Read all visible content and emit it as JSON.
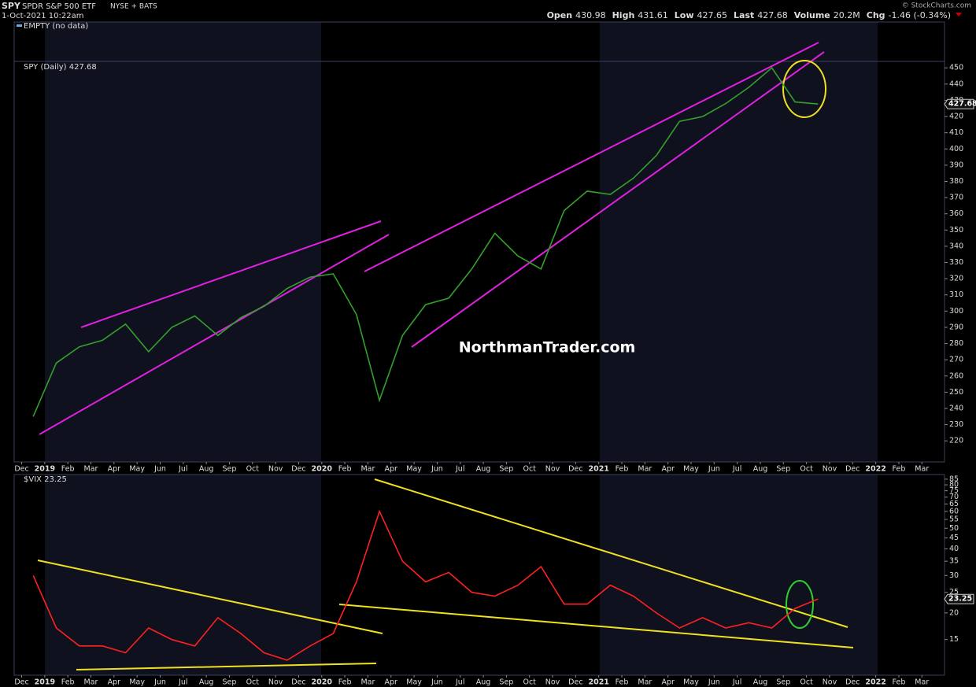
{
  "header": {
    "symbol": "SPY",
    "name": "SPDR S&P 500 ETF",
    "exchange": "NYSE + BATS",
    "datetime": "1-Oct-2021 10:22am",
    "quote": [
      {
        "label": "Open",
        "value": "430.98"
      },
      {
        "label": "High",
        "value": "431.61"
      },
      {
        "label": "Low",
        "value": "427.65"
      },
      {
        "label": "Last",
        "value": "427.68"
      },
      {
        "label": "Volume",
        "value": "20.2M"
      },
      {
        "label": "Chg",
        "value": "-1.46 (-0.34%)"
      }
    ],
    "credit": "© StockCharts.com"
  },
  "chart_data": [
    {
      "type": "empty",
      "title": "EMPTY (no data)"
    },
    {
      "type": "line",
      "title": "SPY (Daily) 427.68",
      "annotation": "NorthmanTrader.com",
      "color": "#33a02c",
      "last_value": 427.68,
      "x": [
        "2018-12",
        "2019-01",
        "2019-02",
        "2019-03",
        "2019-04",
        "2019-05",
        "2019-06",
        "2019-07",
        "2019-08",
        "2019-09",
        "2019-10",
        "2019-11",
        "2019-12",
        "2020-01",
        "2020-02",
        "2020-03",
        "2020-04",
        "2020-05",
        "2020-06",
        "2020-07",
        "2020-08",
        "2020-09",
        "2020-10",
        "2020-11",
        "2020-12",
        "2021-01",
        "2021-02",
        "2021-03",
        "2021-04",
        "2021-05",
        "2021-06",
        "2021-07",
        "2021-08",
        "2021-09",
        "2021-10"
      ],
      "values": [
        235,
        268,
        278,
        282,
        292,
        275,
        290,
        297,
        285,
        296,
        303,
        314,
        321,
        323,
        298,
        245,
        285,
        304,
        308,
        326,
        348,
        334,
        326,
        362,
        374,
        372,
        382,
        396,
        417,
        420,
        428,
        438,
        450,
        429,
        427.68
      ],
      "xlim": [
        "2018-11",
        "2022-04"
      ],
      "xticks": [
        {
          "value": "2018-12",
          "label": "Dec"
        },
        {
          "value": "2019-01",
          "label": "2019"
        },
        {
          "value": "2019-02",
          "label": "Feb"
        },
        {
          "value": "2019-03",
          "label": "Mar"
        },
        {
          "value": "2019-04",
          "label": "Apr"
        },
        {
          "value": "2019-05",
          "label": "May"
        },
        {
          "value": "2019-06",
          "label": "Jun"
        },
        {
          "value": "2019-07",
          "label": "Jul"
        },
        {
          "value": "2019-08",
          "label": "Aug"
        },
        {
          "value": "2019-09",
          "label": "Sep"
        },
        {
          "value": "2019-10",
          "label": "Oct"
        },
        {
          "value": "2019-11",
          "label": "Nov"
        },
        {
          "value": "2019-12",
          "label": "Dec"
        },
        {
          "value": "2020-01",
          "label": "2020"
        },
        {
          "value": "2020-02",
          "label": "Feb"
        },
        {
          "value": "2020-03",
          "label": "Mar"
        },
        {
          "value": "2020-04",
          "label": "Apr"
        },
        {
          "value": "2020-05",
          "label": "May"
        },
        {
          "value": "2020-06",
          "label": "Jun"
        },
        {
          "value": "2020-07",
          "label": "Jul"
        },
        {
          "value": "2020-08",
          "label": "Aug"
        },
        {
          "value": "2020-09",
          "label": "Sep"
        },
        {
          "value": "2020-10",
          "label": "Oct"
        },
        {
          "value": "2020-11",
          "label": "Nov"
        },
        {
          "value": "2020-12",
          "label": "Dec"
        },
        {
          "value": "2021-01",
          "label": "2021"
        },
        {
          "value": "2021-02",
          "label": "Feb"
        },
        {
          "value": "2021-03",
          "label": "Mar"
        },
        {
          "value": "2021-04",
          "label": "Apr"
        },
        {
          "value": "2021-05",
          "label": "May"
        },
        {
          "value": "2021-06",
          "label": "Jun"
        },
        {
          "value": "2021-07",
          "label": "Jul"
        },
        {
          "value": "2021-08",
          "label": "Aug"
        },
        {
          "value": "2021-09",
          "label": "Sep"
        },
        {
          "value": "2021-10",
          "label": "Oct"
        },
        {
          "value": "2021-11",
          "label": "Nov"
        },
        {
          "value": "2021-12",
          "label": "Dec"
        },
        {
          "value": "2022-01",
          "label": "2022"
        },
        {
          "value": "2022-02",
          "label": "Feb"
        },
        {
          "value": "2022-03",
          "label": "Mar"
        }
      ],
      "ylim": [
        207,
        454
      ],
      "log_scale": false,
      "yticks": [
        220,
        230,
        240,
        250,
        260,
        270,
        280,
        290,
        300,
        310,
        320,
        330,
        340,
        350,
        360,
        370,
        380,
        390,
        400,
        410,
        420,
        430,
        440,
        450
      ]
    },
    {
      "type": "line",
      "title": "$VIX 23.25",
      "color": "#ff2020",
      "last_value": 23.25,
      "x": [
        "2018-12",
        "2019-01",
        "2019-02",
        "2019-03",
        "2019-04",
        "2019-05",
        "2019-06",
        "2019-07",
        "2019-08",
        "2019-09",
        "2019-10",
        "2019-11",
        "2019-12",
        "2020-01",
        "2020-02",
        "2020-03",
        "2020-04",
        "2020-05",
        "2020-06",
        "2020-07",
        "2020-08",
        "2020-09",
        "2020-10",
        "2020-11",
        "2020-12",
        "2021-01",
        "2021-02",
        "2021-03",
        "2021-04",
        "2021-05",
        "2021-06",
        "2021-07",
        "2021-08",
        "2021-09",
        "2021-10"
      ],
      "values": [
        30,
        17,
        14,
        14,
        13,
        17,
        15,
        14,
        19,
        16,
        13,
        12,
        14,
        16,
        28,
        60,
        35,
        28,
        31,
        25,
        24,
        27,
        33,
        22,
        22,
        27,
        24,
        20,
        17,
        19,
        17,
        18,
        17,
        21,
        23.25
      ],
      "xlim": [
        "2018-11",
        "2022-04"
      ],
      "xticks": [
        {
          "value": "2018-12",
          "label": "Dec"
        },
        {
          "value": "2019-01",
          "label": "2019"
        },
        {
          "value": "2019-02",
          "label": "Feb"
        },
        {
          "value": "2019-03",
          "label": "Mar"
        },
        {
          "value": "2019-04",
          "label": "Apr"
        },
        {
          "value": "2019-05",
          "label": "May"
        },
        {
          "value": "2019-06",
          "label": "Jun"
        },
        {
          "value": "2019-07",
          "label": "Jul"
        },
        {
          "value": "2019-08",
          "label": "Aug"
        },
        {
          "value": "2019-09",
          "label": "Sep"
        },
        {
          "value": "2019-10",
          "label": "Oct"
        },
        {
          "value": "2019-11",
          "label": "Nov"
        },
        {
          "value": "2019-12",
          "label": "Dec"
        },
        {
          "value": "2020-01",
          "label": "2020"
        },
        {
          "value": "2020-02",
          "label": "Feb"
        },
        {
          "value": "2020-03",
          "label": "Mar"
        },
        {
          "value": "2020-04",
          "label": "Apr"
        },
        {
          "value": "2020-05",
          "label": "May"
        },
        {
          "value": "2020-06",
          "label": "Jun"
        },
        {
          "value": "2020-07",
          "label": "Jul"
        },
        {
          "value": "2020-08",
          "label": "Aug"
        },
        {
          "value": "2020-09",
          "label": "Sep"
        },
        {
          "value": "2020-10",
          "label": "Oct"
        },
        {
          "value": "2020-11",
          "label": "Nov"
        },
        {
          "value": "2020-12",
          "label": "Dec"
        },
        {
          "value": "2021-01",
          "label": "2021"
        },
        {
          "value": "2021-02",
          "label": "Feb"
        },
        {
          "value": "2021-03",
          "label": "Mar"
        },
        {
          "value": "2021-04",
          "label": "Apr"
        },
        {
          "value": "2021-05",
          "label": "May"
        },
        {
          "value": "2021-06",
          "label": "Jun"
        },
        {
          "value": "2021-07",
          "label": "Jul"
        },
        {
          "value": "2021-08",
          "label": "Aug"
        },
        {
          "value": "2021-09",
          "label": "Sep"
        },
        {
          "value": "2021-10",
          "label": "Oct"
        },
        {
          "value": "2021-11",
          "label": "Nov"
        },
        {
          "value": "2021-12",
          "label": "Dec"
        },
        {
          "value": "2022-01",
          "label": "2022"
        },
        {
          "value": "2022-02",
          "label": "Feb"
        },
        {
          "value": "2022-03",
          "label": "Mar"
        }
      ],
      "ylim": [
        10.2,
        89.4
      ],
      "log_scale": true,
      "yticks": [
        15,
        20,
        25,
        30,
        35,
        40,
        45,
        50,
        55,
        60,
        65,
        70,
        75,
        80,
        85
      ]
    }
  ]
}
